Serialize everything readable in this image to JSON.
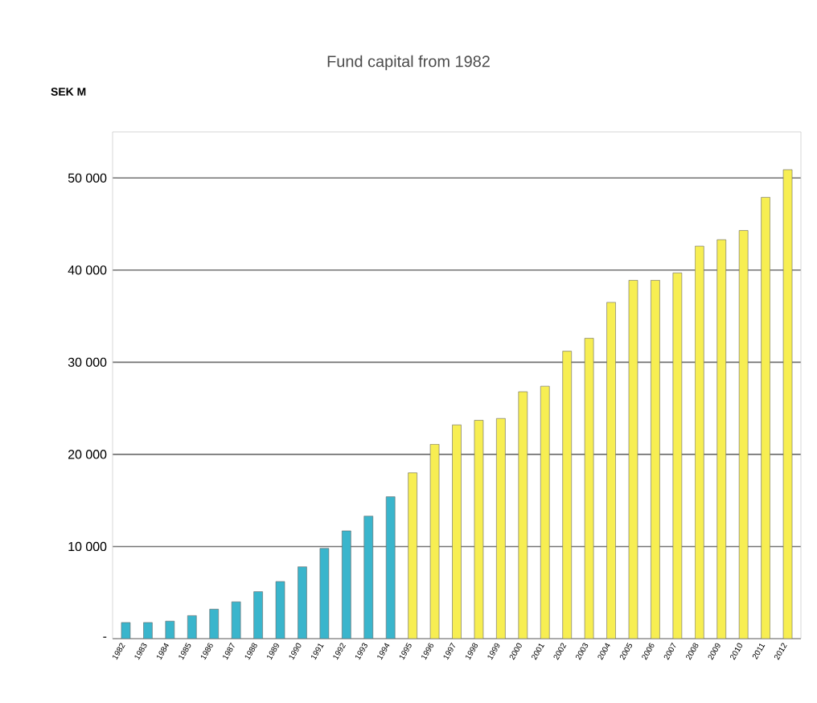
{
  "chart_data": {
    "type": "bar",
    "title": "Fund capital from 1982",
    "ylabel": "SEK M",
    "categories": [
      "1982",
      "1983",
      "1984",
      "1985",
      "1986",
      "1987",
      "1988",
      "1989",
      "1990",
      "1991",
      "1992",
      "1993",
      "1994",
      "1995",
      "1996",
      "1997",
      "1998",
      "1999",
      "2000",
      "2001",
      "2002",
      "2003",
      "2004",
      "2005",
      "2006",
      "2007",
      "2008",
      "2009",
      "2010",
      "2011",
      "2012"
    ],
    "values": [
      1750,
      1750,
      1900,
      2500,
      3200,
      4000,
      5100,
      6200,
      7800,
      9800,
      11700,
      13300,
      15400,
      18000,
      21100,
      23200,
      23700,
      23900,
      26800,
      27400,
      31200,
      32600,
      36500,
      38900,
      38900,
      39700,
      42600,
      43300,
      44300,
      47900,
      50900
    ],
    "colors": [
      "#3ab5cc",
      "#3ab5cc",
      "#3ab5cc",
      "#3ab5cc",
      "#3ab5cc",
      "#3ab5cc",
      "#3ab5cc",
      "#3ab5cc",
      "#3ab5cc",
      "#3ab5cc",
      "#3ab5cc",
      "#3ab5cc",
      "#3ab5cc",
      "#f7ee52",
      "#f7ee52",
      "#f7ee52",
      "#f7ee52",
      "#f7ee52",
      "#f7ee52",
      "#f7ee52",
      "#f7ee52",
      "#f7ee52",
      "#f7ee52",
      "#f7ee52",
      "#f7ee52",
      "#f7ee52",
      "#f7ee52",
      "#f7ee52",
      "#f7ee52",
      "#f7ee52",
      "#f7ee52"
    ],
    "ylim": [
      0,
      55000
    ],
    "yticks": [
      {
        "value": 0,
        "label": "-"
      },
      {
        "value": 10000,
        "label": "10 000"
      },
      {
        "value": 20000,
        "label": "20 000"
      },
      {
        "value": 30000,
        "label": "30 000"
      },
      {
        "value": 40000,
        "label": "40 000"
      },
      {
        "value": 50000,
        "label": "50 000"
      }
    ],
    "grid": "y"
  }
}
